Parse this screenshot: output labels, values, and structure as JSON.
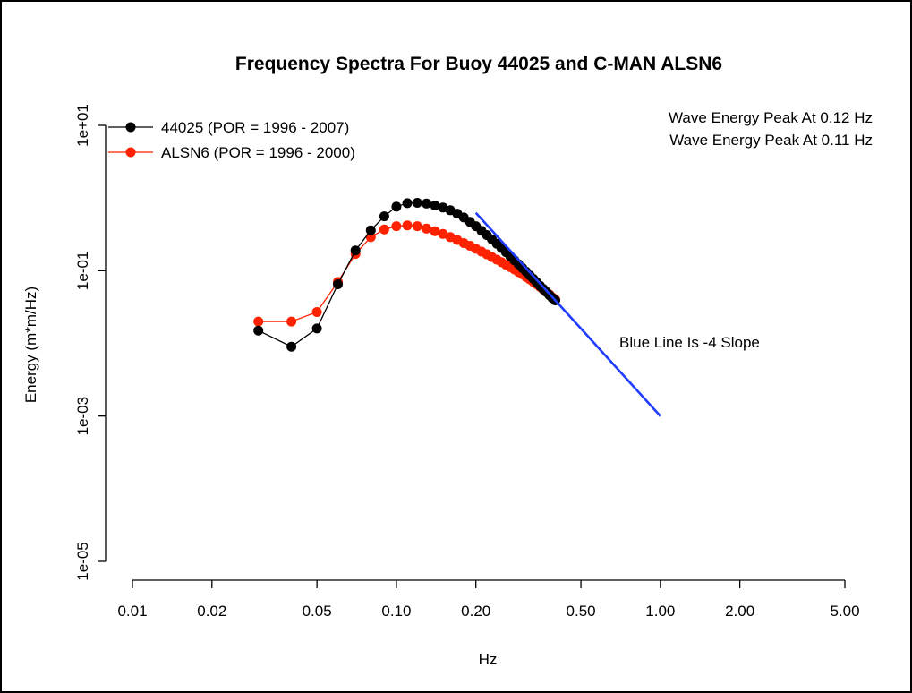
{
  "chart_data": {
    "type": "line",
    "title": "Frequency Spectra For Buoy 44025 and C-MAN ALSN6",
    "xlabel": "Hz",
    "ylabel": "Energy (m*m/Hz)",
    "x_scale": "log",
    "y_scale": "log",
    "xlim": [
      0.01,
      5.0
    ],
    "ylim": [
      1e-05,
      10
    ],
    "x_ticks": [
      "0.01",
      "0.02",
      "0.05",
      "0.10",
      "0.20",
      "0.50",
      "1.00",
      "2.00",
      "5.00"
    ],
    "y_ticks": [
      "1e-05",
      "1e-03",
      "1e-01",
      "1e+01"
    ],
    "grid": false,
    "legend_position": "top-left",
    "series": [
      {
        "name": "44025 (POR = 1996 - 2007)",
        "color": "#000000",
        "x": [
          0.03,
          0.04,
          0.05,
          0.06,
          0.07,
          0.08,
          0.09,
          0.1,
          0.11,
          0.12,
          0.13,
          0.14,
          0.15,
          0.16,
          0.17,
          0.18,
          0.19,
          0.2,
          0.21,
          0.22,
          0.23,
          0.24,
          0.25,
          0.26,
          0.27,
          0.28,
          0.29,
          0.3,
          0.31,
          0.32,
          0.33,
          0.34,
          0.35,
          0.36,
          0.37,
          0.38,
          0.39,
          0.4
        ],
        "y": [
          0.015,
          0.009,
          0.016,
          0.065,
          0.19,
          0.36,
          0.56,
          0.76,
          0.85,
          0.86,
          0.84,
          0.79,
          0.74,
          0.68,
          0.61,
          0.54,
          0.47,
          0.41,
          0.355,
          0.31,
          0.27,
          0.235,
          0.205,
          0.18,
          0.158,
          0.139,
          0.123,
          0.109,
          0.097,
          0.086,
          0.077,
          0.069,
          0.062,
          0.056,
          0.051,
          0.046,
          0.042,
          0.039
        ]
      },
      {
        "name": "ALSN6 (POR = 1996 - 2000)",
        "color": "#ff2200",
        "x": [
          0.03,
          0.04,
          0.05,
          0.06,
          0.07,
          0.08,
          0.09,
          0.1,
          0.11,
          0.12,
          0.13,
          0.14,
          0.15,
          0.16,
          0.17,
          0.18,
          0.19,
          0.2,
          0.21,
          0.22,
          0.23,
          0.24,
          0.25,
          0.26,
          0.27,
          0.28,
          0.29,
          0.3,
          0.31,
          0.32,
          0.33,
          0.34,
          0.35,
          0.36,
          0.37,
          0.38,
          0.39,
          0.4
        ],
        "y": [
          0.02,
          0.02,
          0.027,
          0.07,
          0.17,
          0.29,
          0.37,
          0.41,
          0.42,
          0.41,
          0.38,
          0.35,
          0.32,
          0.29,
          0.265,
          0.24,
          0.22,
          0.2,
          0.183,
          0.168,
          0.154,
          0.142,
          0.131,
          0.121,
          0.112,
          0.104,
          0.096,
          0.089,
          0.082,
          0.076,
          0.07,
          0.065,
          0.06,
          0.055,
          0.051,
          0.047,
          0.043,
          0.04
        ]
      },
      {
        "color": "#1f3cff",
        "x": [
          0.2,
          1.0
        ],
        "y": [
          0.625,
          0.001
        ]
      }
    ],
    "annotations": [
      {
        "text": "Wave Energy Peak At 0.12 Hz",
        "color": "#000000"
      },
      {
        "text": "Wave Energy Peak At 0.11 Hz",
        "color": "#ff2200"
      },
      {
        "text": "Blue Line Is -4 Slope",
        "color": "#000000"
      }
    ]
  }
}
